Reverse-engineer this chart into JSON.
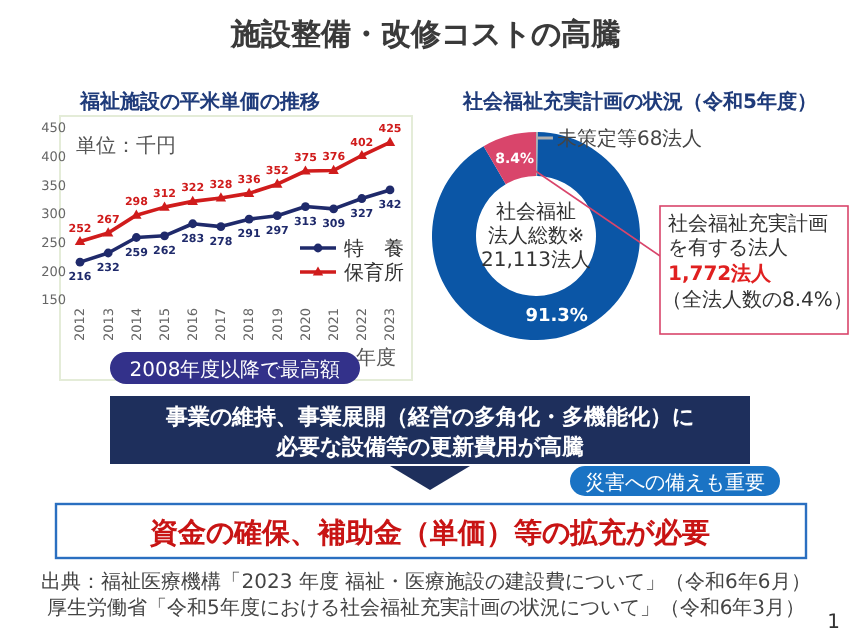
{
  "chart_data": [
    {
      "type": "line",
      "title": "福祉施設の平米単価の推移",
      "categories": [
        "2012",
        "2013",
        "2014",
        "2015",
        "2016",
        "2017",
        "2018",
        "2019",
        "2020",
        "2021",
        "2022",
        "2023"
      ],
      "series": [
        {
          "name": "特　養",
          "color": "#1f2a6b",
          "marker": "circle",
          "values": [
            216,
            232,
            259,
            262,
            283,
            278,
            291,
            297,
            313,
            309,
            327,
            342
          ]
        },
        {
          "name": "保育所",
          "color": "#d01c1c",
          "marker": "triangle",
          "values": [
            252,
            267,
            298,
            312,
            322,
            328,
            336,
            352,
            375,
            376,
            402,
            425
          ]
        }
      ],
      "ylim": [
        150,
        450
      ],
      "yticks": [
        150,
        200,
        250,
        300,
        350,
        400,
        450
      ],
      "data_labels": true,
      "legend": "bottom right",
      "grid": false,
      "annotations": [
        "単位：千円",
        "年度"
      ]
    },
    {
      "type": "donut",
      "title": "社会福祉充実計画の状況（令和5年度）",
      "categories": [
        "未策定等68法人",
        null,
        null
      ],
      "values": [
        0.3,
        91.3,
        8.4
      ],
      "colors": [
        "#b0b0b0",
        "#0b56a6",
        "#d9456b"
      ],
      "value_labels": [
        null,
        "91.3%",
        "8.4%"
      ],
      "annotations": [
        "社会福祉",
        "法人総数※",
        "21,113法人",
        "社会福祉充実計画",
        "を有する法人",
        "1,772法人",
        "（全法人数の8.4%）"
      ]
    },
    {
      "type": "other",
      "title": "施設整備・改修コストの高騰",
      "annotations": [
        "2008年度以降で最高額",
        "事業の維持、事業展開（経営の多角化・多機能化）に",
        "必要な設備等の更新費用が高騰",
        "災害への備えも重要",
        "資金の確保、補助金（単価）等の拡充が必要",
        "出典：福祉医療機構「2023 年度 福祉・医療施設の建設費について」（令和6年6月）",
        "厚生労働省「令和5年度における社会福祉充実計画の状況について」（令和6年3月）",
        "1"
      ]
    }
  ]
}
